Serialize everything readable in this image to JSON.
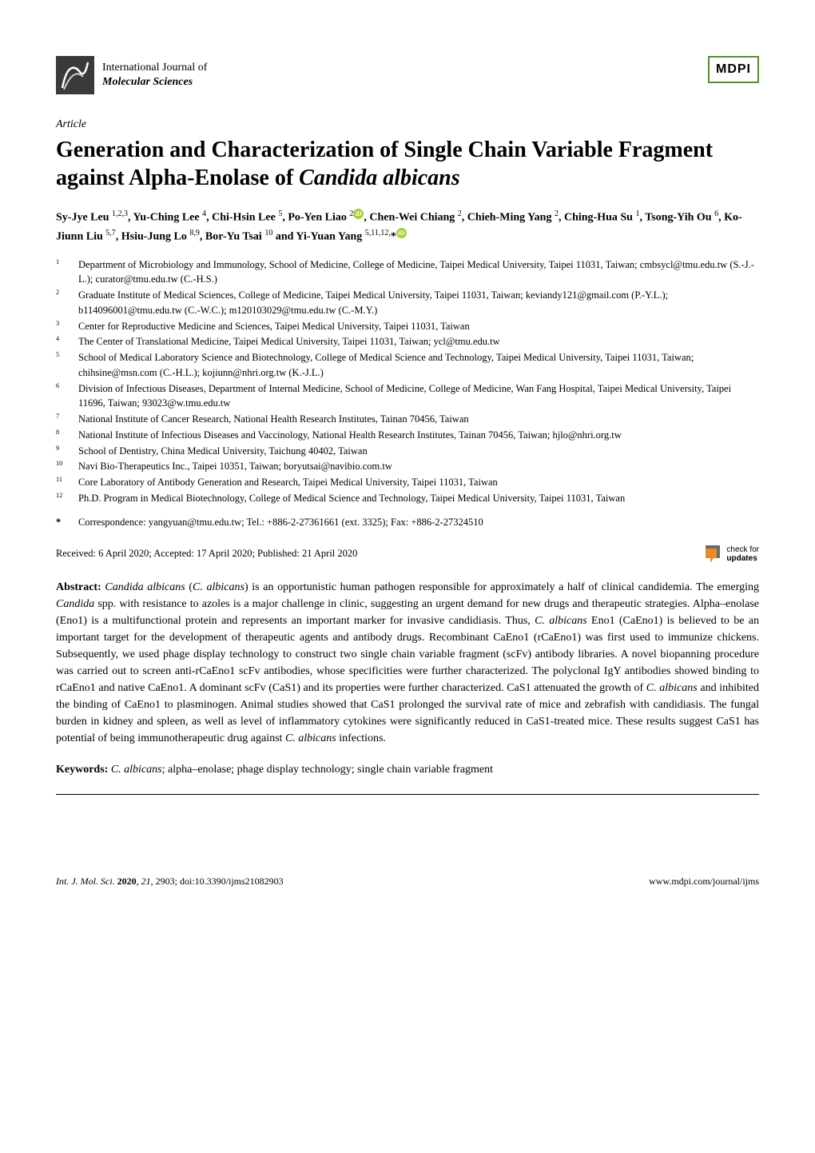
{
  "journal": {
    "prefix": "International Journal of",
    "name": "Molecular Sciences",
    "publisher_logo": "MDPI"
  },
  "article_label": "Article",
  "title_parts": {
    "line1": "Generation and Characterization of Single Chain Variable Fragment against Alpha-Enolase of ",
    "italic_species": "Candida albicans"
  },
  "authors_html": "Sy-Jye Leu <sup>1,2,3</sup>, Yu-Ching Lee <sup>4</sup>, Chi-Hsin Lee <sup>5</sup>, Po-Yen Liao <sup>2</sup><span class=\"orcid-icon\" data-name=\"orcid-icon\" data-interactable=\"false\">iD</span>, Chen-Wei Chiang <sup>2</sup>, Chieh-Ming Yang <sup>2</sup>, Ching-Hua Su <sup>1</sup>, Tsong-Yih Ou <sup>6</sup>, Ko-Jiunn Liu <sup>5,7</sup>, Hsiu-Jung Lo <sup>8,9</sup>, Bor-Yu Tsai <sup>10</sup> and Yi-Yuan Yang <sup>5,11,12,</sup>*<span class=\"orcid-icon\" data-name=\"orcid-icon\" data-interactable=\"false\">iD</span>",
  "affiliations": [
    {
      "num": "1",
      "text": "Department of Microbiology and Immunology, School of Medicine, College of Medicine, Taipei Medical University, Taipei 11031, Taiwan; cmbsycl@tmu.edu.tw (S.-J.-L.); curator@tmu.edu.tw (C.-H.S.)"
    },
    {
      "num": "2",
      "text": "Graduate Institute of Medical Sciences, College of Medicine, Taipei Medical University, Taipei 11031, Taiwan; keviandy121@gmail.com (P.-Y.L.); b114096001@tmu.edu.tw (C.-W.C.); m120103029@tmu.edu.tw (C.-M.Y.)"
    },
    {
      "num": "3",
      "text": "Center for Reproductive Medicine and Sciences, Taipei Medical University, Taipei 11031, Taiwan"
    },
    {
      "num": "4",
      "text": "The Center of Translational Medicine, Taipei Medical University, Taipei 11031, Taiwan; ycl@tmu.edu.tw"
    },
    {
      "num": "5",
      "text": "School of Medical Laboratory Science and Biotechnology, College of Medical Science and Technology, Taipei Medical University, Taipei 11031, Taiwan; chihsine@msn.com (C.-H.L.); kojiunn@nhri.org.tw (K.-J.L.)"
    },
    {
      "num": "6",
      "text": "Division of Infectious Diseases, Department of Internal Medicine, School of Medicine, College of Medicine, Wan Fang Hospital, Taipei Medical University, Taipei 11696, Taiwan; 93023@w.tmu.edu.tw"
    },
    {
      "num": "7",
      "text": "National Institute of Cancer Research, National Health Research Institutes, Tainan 70456, Taiwan"
    },
    {
      "num": "8",
      "text": "National Institute of Infectious Diseases and Vaccinology, National Health Research Institutes, Tainan 70456, Taiwan; hjlo@nhri.org.tw"
    },
    {
      "num": "9",
      "text": "School of Dentistry, China Medical University, Taichung 40402, Taiwan"
    },
    {
      "num": "10",
      "text": "Navi Bio-Therapeutics Inc., Taipei 10351, Taiwan; boryutsai@navibio.com.tw"
    },
    {
      "num": "11",
      "text": "Core Laboratory of Antibody Generation and Research, Taipei Medical University, Taipei 11031, Taiwan"
    },
    {
      "num": "12",
      "text": "Ph.D. Program in Medical Biotechnology, College of Medical Science and Technology, Taipei Medical University, Taipei 11031, Taiwan"
    }
  ],
  "correspondence": {
    "star": "*",
    "text": "Correspondence: yangyuan@tmu.edu.tw; Tel.: +886-2-27361661 (ext. 3325); Fax: +886-2-27324510"
  },
  "received": "Received: 6 April 2020; Accepted: 17 April 2020; Published: 21 April 2020",
  "updates_badge": {
    "line1": "check for",
    "line2": "updates"
  },
  "abstract": {
    "label": "Abstract:",
    "body_html": " <span class=\"italic\">Candida albicans</span> (<span class=\"italic\">C. albicans</span>) is an opportunistic human pathogen responsible for approximately a half of clinical candidemia. The emerging <span class=\"italic\">Candida</span> spp. with resistance to azoles is a major challenge in clinic, suggesting an urgent demand for new drugs and therapeutic strategies. Alpha–enolase (Eno1) is a multifunctional protein and represents an important marker for invasive candidiasis. Thus, <span class=\"italic\">C. albicans</span> Eno1 (CaEno1) is believed to be an important target for the development of therapeutic agents and antibody drugs. Recombinant CaEno1 (rCaEno1) was first used to immunize chickens. Subsequently, we used phage display technology to construct two single chain variable fragment (scFv) antibody libraries. A novel biopanning procedure was carried out to screen anti-rCaEno1 scFv antibodies, whose specificities were further characterized. The polyclonal IgY antibodies showed binding to rCaEno1 and native CaEno1. A dominant scFv (CaS1) and its properties were further characterized. CaS1 attenuated the growth of <span class=\"italic\">C. albicans</span> and inhibited the binding of CaEno1 to plasminogen. Animal studies showed that CaS1 prolonged the survival rate of mice and zebrafish with candidiasis. The fungal burden in kidney and spleen, as well as level of inflammatory cytokines were significantly reduced in CaS1-treated mice. These results suggest CaS1 has potential of being immunotherapeutic drug against <span class=\"italic\">C. albicans</span> infections."
  },
  "keywords": {
    "label": "Keywords:",
    "body_html": " <span class=\"italic\">C. albicans</span>; alpha–enolase; phage display technology; single chain variable fragment"
  },
  "footer": {
    "left_html": "<span class=\"italic\">Int. J. Mol. Sci.</span> <span class=\"bold\">2020</span>, <span class=\"italic\">21</span>, 2903; doi:10.3390/ijms21082903",
    "right": "www.mdpi.com/journal/ijms"
  },
  "colors": {
    "orcid": "#a6ce39",
    "mdpi_border": "#5a8a3a",
    "updates_orange": "#e98b2a",
    "updates_gray": "#6b6b6b",
    "journal_icon_bg": "#3a3a3a"
  }
}
